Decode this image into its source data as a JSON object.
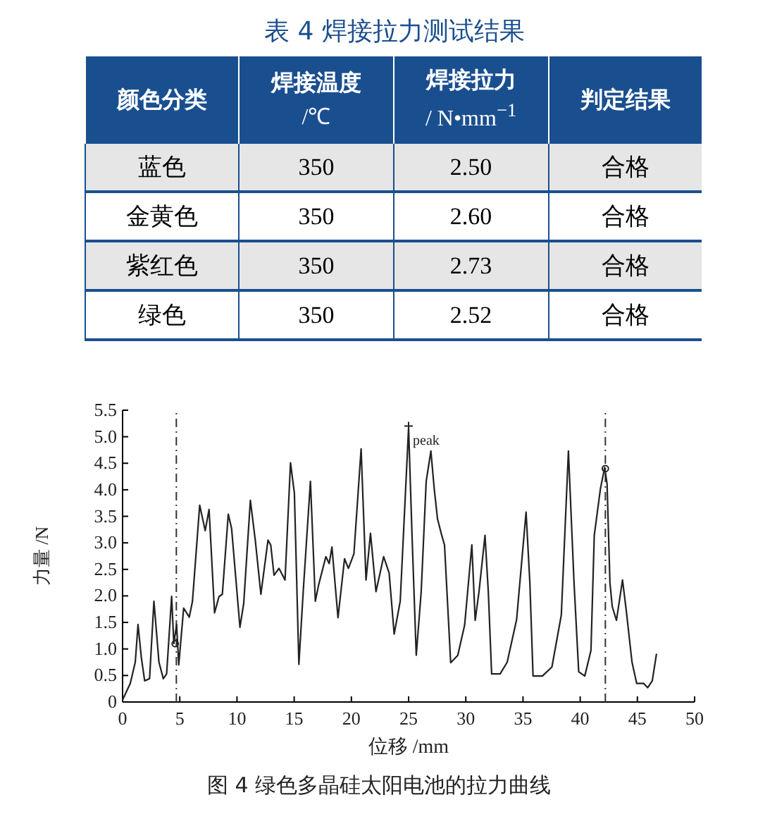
{
  "chart_data": [
    {
      "type": "other",
      "title": "表 4 焊接拉力测试结果",
      "ylabel": "颜色分类",
      "categories": [
        "焊接温度 /℃",
        "焊接拉力 / N•mm$^{−1}$",
        "判定结果"
      ],
      "y_categories": [
        "蓝色",
        "金黄色",
        "紫红色",
        "绿色"
      ],
      "cell_labels": [
        [
          "350",
          "2.50",
          "合格"
        ],
        [
          "350",
          "2.60",
          "合格"
        ],
        [
          "350",
          "2.73",
          "合格"
        ],
        [
          "350",
          "2.52",
          "合格"
        ]
      ]
    },
    {
      "type": "line",
      "xlabel": "位移 /mm",
      "ylabel": "力量 /N",
      "xlim": [
        0,
        50
      ],
      "ylim": [
        0,
        5.5
      ],
      "xticks": [
        0,
        5,
        10,
        15,
        20,
        25,
        30,
        35,
        40,
        45,
        50
      ],
      "yticks": [
        0,
        {
          "value": 0.5,
          "label": "0.5"
        },
        {
          "value": 1,
          "label": "1.0"
        },
        {
          "value": 1.5,
          "label": "1.5"
        },
        {
          "value": 2,
          "label": "2.0"
        },
        {
          "value": 2.5,
          "label": "2.5"
        },
        {
          "value": 3,
          "label": "3.0"
        },
        {
          "value": 3.5,
          "label": "3.5"
        },
        {
          "value": 4,
          "label": "4.0"
        },
        {
          "value": 4.5,
          "label": "4.5"
        },
        {
          "value": 5,
          "label": "5.0"
        },
        {
          "value": 5.5,
          "label": "5.5"
        }
      ],
      "grid": false,
      "marker": "none",
      "line_style": "solid",
      "series": [
        {
          "type": "line",
          "color": "#222222",
          "x": [
            0.0,
            0.67,
            1.11,
            1.35,
            1.64,
            1.93,
            2.36,
            2.74,
            3.18,
            3.56,
            3.85,
            4.29,
            4.48,
            4.72,
            4.91,
            5.34,
            5.83,
            6.11,
            6.74,
            7.22,
            7.56,
            8.04,
            8.43,
            8.72,
            9.24,
            9.53,
            10.26,
            10.59,
            11.17,
            11.6,
            12.09,
            12.71,
            12.95,
            13.24,
            13.67,
            14.2,
            14.68,
            15.02,
            15.41,
            15.79,
            16.42,
            16.85,
            17.14,
            17.77,
            18.06,
            18.3,
            18.83,
            19.4,
            19.74,
            20.22,
            20.85,
            21.28,
            21.67,
            22.15,
            22.82,
            23.3,
            23.74,
            24.27,
            25.0,
            25.3,
            25.67,
            26.1,
            26.54,
            26.95,
            27.24,
            27.53,
            27.85,
            28.14,
            28.68,
            29.3,
            29.9,
            30.53,
            30.82,
            31.15,
            31.68,
            31.97,
            32.26,
            33.0,
            33.62,
            34.44,
            34.98,
            35.27,
            35.6,
            35.88,
            36.7,
            37.53,
            38.35,
            38.97,
            39.46,
            39.87,
            40.4,
            40.94,
            41.23,
            41.77,
            42.14,
            42.35,
            42.6,
            42.8,
            43.17,
            43.7,
            44.03,
            44.53,
            44.94,
            45.56,
            45.9,
            46.3,
            46.67
          ],
          "values": [
            0.04,
            0.35,
            0.75,
            1.46,
            0.84,
            0.4,
            0.44,
            1.9,
            0.75,
            0.44,
            0.53,
            1.99,
            1.1,
            1.46,
            0.7,
            1.77,
            1.6,
            1.9,
            3.71,
            3.23,
            3.63,
            1.68,
            1.99,
            2.03,
            3.54,
            3.27,
            1.41,
            1.86,
            3.8,
            3.05,
            2.03,
            3.05,
            2.96,
            2.39,
            2.52,
            2.3,
            4.51,
            3.93,
            0.71,
            2.08,
            4.16,
            1.9,
            2.21,
            2.74,
            2.61,
            2.92,
            1.59,
            2.7,
            2.52,
            2.79,
            4.77,
            2.3,
            3.18,
            2.08,
            2.74,
            2.43,
            1.28,
            1.9,
            5.17,
            3.14,
            0.88,
            2.07,
            4.16,
            4.73,
            4.02,
            3.45,
            3.18,
            2.96,
            0.74,
            0.88,
            1.45,
            2.96,
            1.54,
            2.07,
            3.14,
            2.07,
            0.53,
            0.53,
            0.75,
            1.55,
            2.87,
            3.58,
            2.25,
            0.49,
            0.49,
            0.66,
            1.64,
            4.73,
            2.25,
            0.57,
            0.49,
            0.97,
            3.14,
            4.02,
            4.42,
            4.11,
            2.25,
            1.8,
            1.54,
            2.3,
            1.72,
            0.75,
            0.35,
            0.35,
            0.27,
            0.4,
            0.91
          ]
        },
        {
          "type": "scatter",
          "marker": "circle",
          "color": "#222222",
          "x": [
            4.6,
            42.2
          ],
          "values": [
            1.1,
            4.4
          ]
        },
        {
          "type": "scatter",
          "marker": "cross",
          "color": "#222222",
          "x": [
            25
          ],
          "values": [
            5.2
          ]
        }
      ],
      "ref_lines": [
        {
          "axis": "x",
          "value": 4.7,
          "line_style": "dashed",
          "color": "#333333"
        },
        {
          "axis": "x",
          "value": 42.2,
          "line_style": "dashed",
          "color": "#333333"
        }
      ],
      "annotations": [
        {
          "text": "peak",
          "x": 25,
          "y": 5.17
        },
        "图 4 绿色多晶硅太阳电池的拉力曲线"
      ]
    }
  ]
}
